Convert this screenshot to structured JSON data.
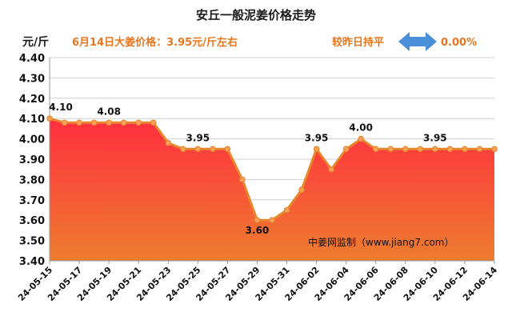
{
  "header": {
    "title": "安丘一般泥姜价格走势",
    "unit_label": "元/斤",
    "price_note": "6月14日大姜价格：3.95元/斤左右",
    "trend_label": "较昨日持平",
    "change_value": "0.00%",
    "arrow_icon": "double-arrow-icon",
    "accent_color": "#e8761f",
    "arrow_color": "#4a90d9"
  },
  "watermark": "中姜网监制（www.jiang7.com）",
  "chart_data": {
    "type": "area",
    "title": "安丘一般泥姜价格走势",
    "ylabel": "元/斤",
    "ylim": [
      3.4,
      4.4
    ],
    "yticks": [
      "3.40",
      "3.50",
      "3.60",
      "3.70",
      "3.80",
      "3.90",
      "4.00",
      "4.10",
      "4.20",
      "4.30",
      "4.40"
    ],
    "grid": true,
    "x": [
      "24-05-15",
      "24-05-16",
      "24-05-17",
      "24-05-18",
      "24-05-19",
      "24-05-20",
      "24-05-21",
      "24-05-22",
      "24-05-23",
      "24-05-24",
      "24-05-25",
      "24-05-26",
      "24-05-27",
      "24-05-28",
      "24-05-29",
      "24-05-30",
      "24-05-31",
      "24-06-01",
      "24-06-02",
      "24-06-03",
      "24-06-04",
      "24-06-05",
      "24-06-06",
      "24-06-07",
      "24-06-08",
      "24-06-09",
      "24-06-10",
      "24-06-11",
      "24-06-12",
      "24-06-13",
      "24-06-14"
    ],
    "xtick_labels": [
      "24-05-15",
      "24-05-17",
      "24-05-19",
      "24-05-21",
      "24-05-23",
      "24-05-25",
      "24-05-27",
      "24-05-29",
      "24-05-31",
      "24-06-02",
      "24-06-04",
      "24-06-06",
      "24-06-08",
      "24-06-10",
      "24-06-12",
      "24-06-14"
    ],
    "values": [
      4.1,
      4.08,
      4.08,
      4.08,
      4.08,
      4.08,
      4.08,
      4.08,
      3.98,
      3.95,
      3.95,
      3.95,
      3.95,
      3.8,
      3.6,
      3.6,
      3.65,
      3.75,
      3.95,
      3.85,
      3.95,
      4.0,
      3.95,
      3.95,
      3.95,
      3.95,
      3.95,
      3.95,
      3.95,
      3.95,
      3.95
    ],
    "annotations": [
      {
        "index": 0,
        "text": "4.10",
        "position": "above"
      },
      {
        "index": 4,
        "text": "4.08",
        "position": "above"
      },
      {
        "index": 10,
        "text": "3.95",
        "position": "above"
      },
      {
        "index": 14,
        "text": "3.60",
        "position": "below"
      },
      {
        "index": 18,
        "text": "3.95",
        "position": "above"
      },
      {
        "index": 21,
        "text": "4.00",
        "position": "above"
      },
      {
        "index": 26,
        "text": "3.95",
        "position": "above"
      }
    ],
    "line_color": "#e8862e",
    "marker_fill": "#f5a35a",
    "fill_top_color": "#ff2e3f",
    "fill_bottom_color": "#ee7d2f",
    "grid_color": "#cfcfcf"
  }
}
